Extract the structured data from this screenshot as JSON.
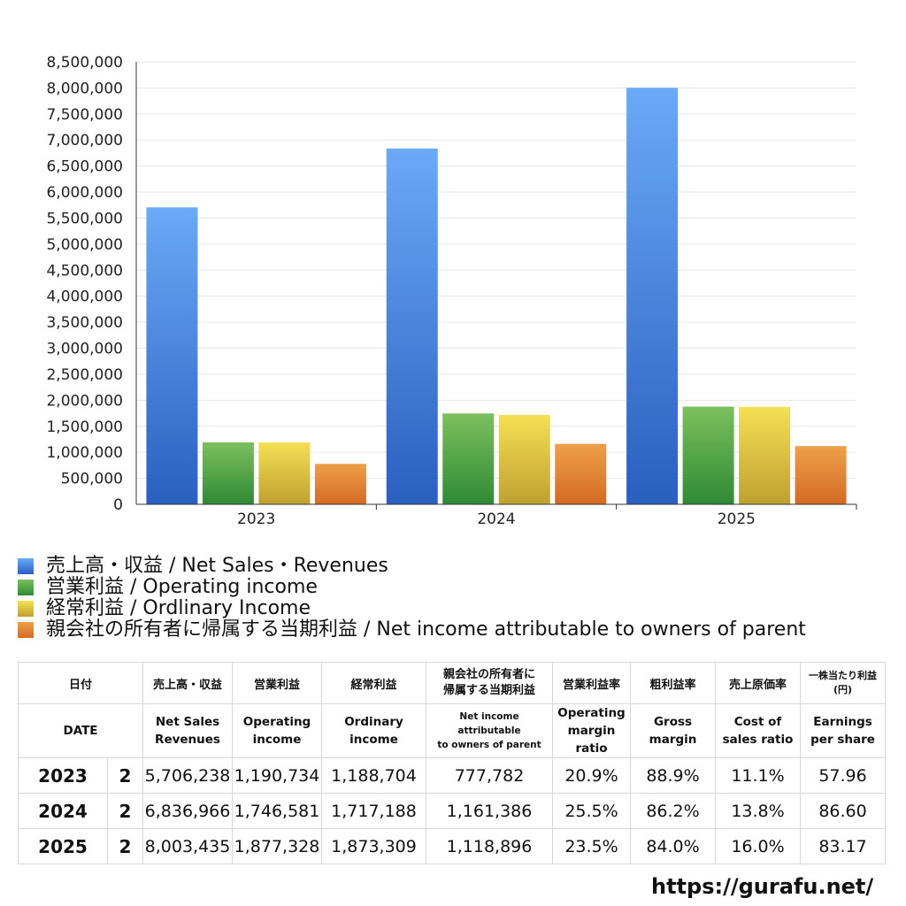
{
  "chart_data": {
    "type": "bar",
    "categories": [
      "2023",
      "2024",
      "2025"
    ],
    "series": [
      {
        "name": "売上高・収益 / Net Sales・Revenues",
        "values": [
          5706238,
          6836966,
          8003435
        ]
      },
      {
        "name": "営業利益 / Operating income",
        "values": [
          1190734,
          1746581,
          1877328
        ]
      },
      {
        "name": "経常利益 / Ordlinary Income",
        "values": [
          1188704,
          1717188,
          1873309
        ]
      },
      {
        "name": "親会社の所有者に帰属する当期利益 / Net income attributable to owners of parent",
        "values": [
          777782,
          1161386,
          1118896
        ]
      }
    ],
    "ylim": [
      0,
      8500000
    ],
    "yticks": [
      "0",
      "500,000",
      "1,000,000",
      "1,500,000",
      "2,000,000",
      "2,500,000",
      "3,000,000",
      "3,500,000",
      "4,000,000",
      "4,500,000",
      "5,000,000",
      "5,500,000",
      "6,000,000",
      "6,500,000",
      "7,000,000",
      "7,500,000",
      "8,000,000",
      "8,500,000"
    ],
    "grid": true,
    "legend_position": "bottom-left",
    "colors": [
      "#4a86e0",
      "#52a046",
      "#d8c43e",
      "#e08a34"
    ]
  },
  "table": {
    "header_jp": {
      "date": "日付",
      "sales": "売上高・収益",
      "op": "営業利益",
      "ord": "経常利益",
      "ni_line1": "親会社の所有者に",
      "ni_line2": "帰属する当期利益",
      "opm": "営業利益率",
      "gm": "粗利益率",
      "cost": "売上原価率",
      "eps_line1": "一株当たり利益",
      "eps_line2": "(円)"
    },
    "header_en": {
      "date": "DATE",
      "sales_line1": "Net Sales",
      "sales_line2": "Revenues",
      "op_line1": "Operating",
      "op_line2": "income",
      "ord_line1": "Ordinary",
      "ord_line2": "income",
      "ni_line1": "Net income attributable",
      "ni_line2": "to owners of parent",
      "opm_line1": "Operating",
      "opm_line2": "margin",
      "opm_line3": "ratio",
      "gm_line1": "Gross",
      "gm_line2": "margin",
      "cost_line1": "Cost of",
      "cost_line2": "sales ratio",
      "eps_line1": "Earnings",
      "eps_line2": "per share"
    },
    "rows": [
      {
        "year": "2023",
        "q": "2",
        "sales": "5,706,238",
        "op": "1,190,734",
        "ord": "1,188,704",
        "ni": "777,782",
        "opm": "20.9%",
        "gm": "88.9%",
        "cost": "11.1%",
        "eps": "57.96"
      },
      {
        "year": "2024",
        "q": "2",
        "sales": "6,836,966",
        "op": "1,746,581",
        "ord": "1,717,188",
        "ni": "1,161,386",
        "opm": "25.5%",
        "gm": "86.2%",
        "cost": "13.8%",
        "eps": "86.60"
      },
      {
        "year": "2025",
        "q": "2",
        "sales": "8,003,435",
        "op": "1,877,328",
        "ord": "1,873,309",
        "ni": "1,118,896",
        "opm": "23.5%",
        "gm": "84.0%",
        "cost": "16.0%",
        "eps": "83.17"
      }
    ]
  },
  "footer": {
    "url": "https://gurafu.net/"
  }
}
